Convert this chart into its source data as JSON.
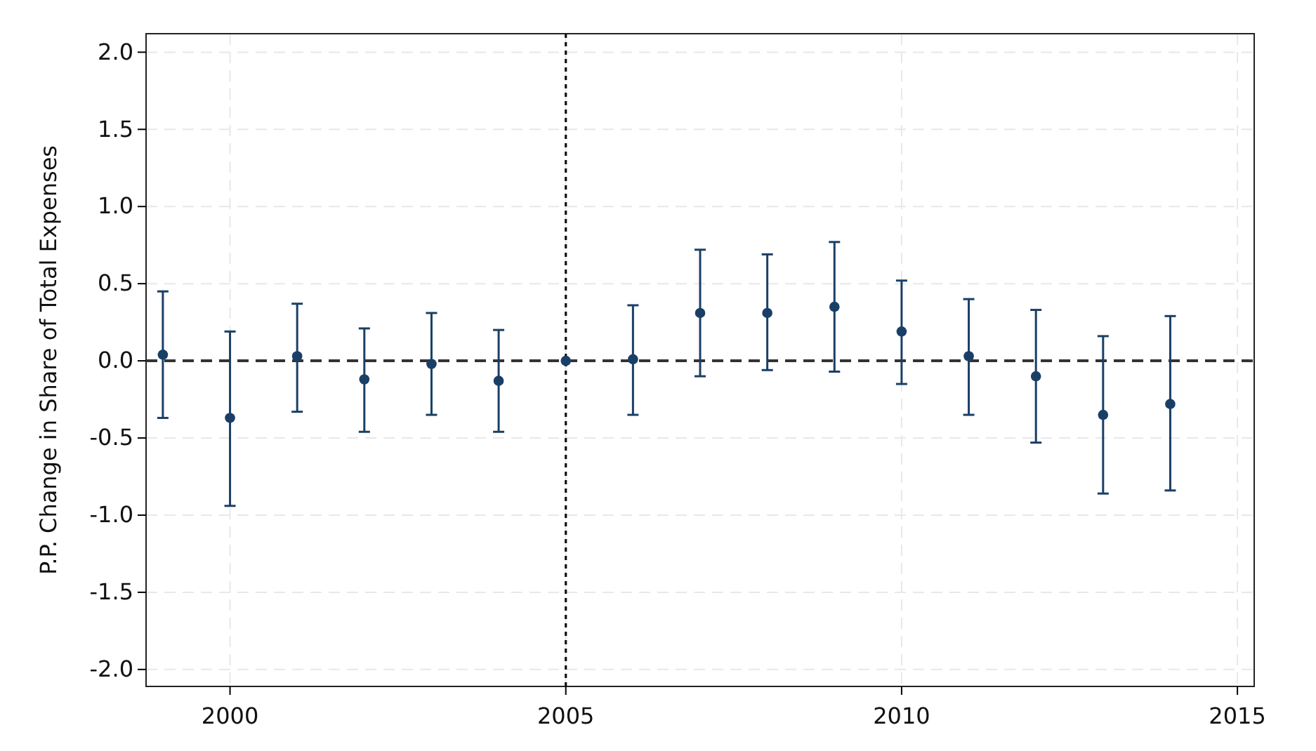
{
  "chart_data": {
    "type": "scatter",
    "ylabel": "P.P. Change in Share of Total Expenses",
    "x": [
      1999,
      2000,
      2001,
      2002,
      2003,
      2004,
      2005,
      2006,
      2007,
      2008,
      2009,
      2010,
      2011,
      2012,
      2013,
      2014
    ],
    "series": [
      {
        "color": "#1a3f66",
        "values": [
          0.04,
          -0.37,
          0.03,
          -0.12,
          -0.02,
          -0.13,
          0,
          0.01,
          0.31,
          0.31,
          0.35,
          0.19,
          0.03,
          -0.1,
          -0.35,
          -0.28
        ],
        "errors": [
          [
            -0.37,
            0.45
          ],
          [
            -0.94,
            0.19
          ],
          [
            -0.33,
            0.37
          ],
          [
            -0.46,
            0.21
          ],
          [
            -0.35,
            0.31
          ],
          [
            -0.46,
            0.2
          ],
          null,
          [
            -0.35,
            0.36
          ],
          [
            -0.1,
            0.72
          ],
          [
            -0.06,
            0.69
          ],
          [
            -0.07,
            0.77
          ],
          [
            -0.15,
            0.52
          ],
          [
            -0.35,
            0.4
          ],
          [
            -0.53,
            0.33
          ],
          [
            -0.86,
            0.16
          ],
          [
            -0.84,
            0.29
          ]
        ]
      }
    ],
    "xlim": [
      1998.75,
      2015.25
    ],
    "xticks": [
      2000,
      2005,
      2010,
      2015
    ],
    "ylim": [
      -2.11,
      2.12
    ],
    "yticks": [
      {
        "value": -2,
        "label": "-2.0"
      },
      {
        "value": -1.5,
        "label": "-1.5"
      },
      {
        "value": -1,
        "label": "-1.0"
      },
      {
        "value": -0.5,
        "label": "-0.5"
      },
      {
        "value": 0,
        "label": "0.0"
      },
      {
        "value": 0.5,
        "label": "0.5"
      },
      {
        "value": 1,
        "label": "1.0"
      },
      {
        "value": 1.5,
        "label": "1.5"
      },
      {
        "value": 2,
        "label": "2.0"
      }
    ],
    "ref_lines": [
      {
        "axis": "y",
        "value": 0,
        "color": "#333333",
        "line_style": "dashed"
      },
      {
        "axis": "x",
        "value": 2005,
        "color": "#111111",
        "line_style": "dotted"
      }
    ],
    "grid": true,
    "marker": "circle"
  }
}
